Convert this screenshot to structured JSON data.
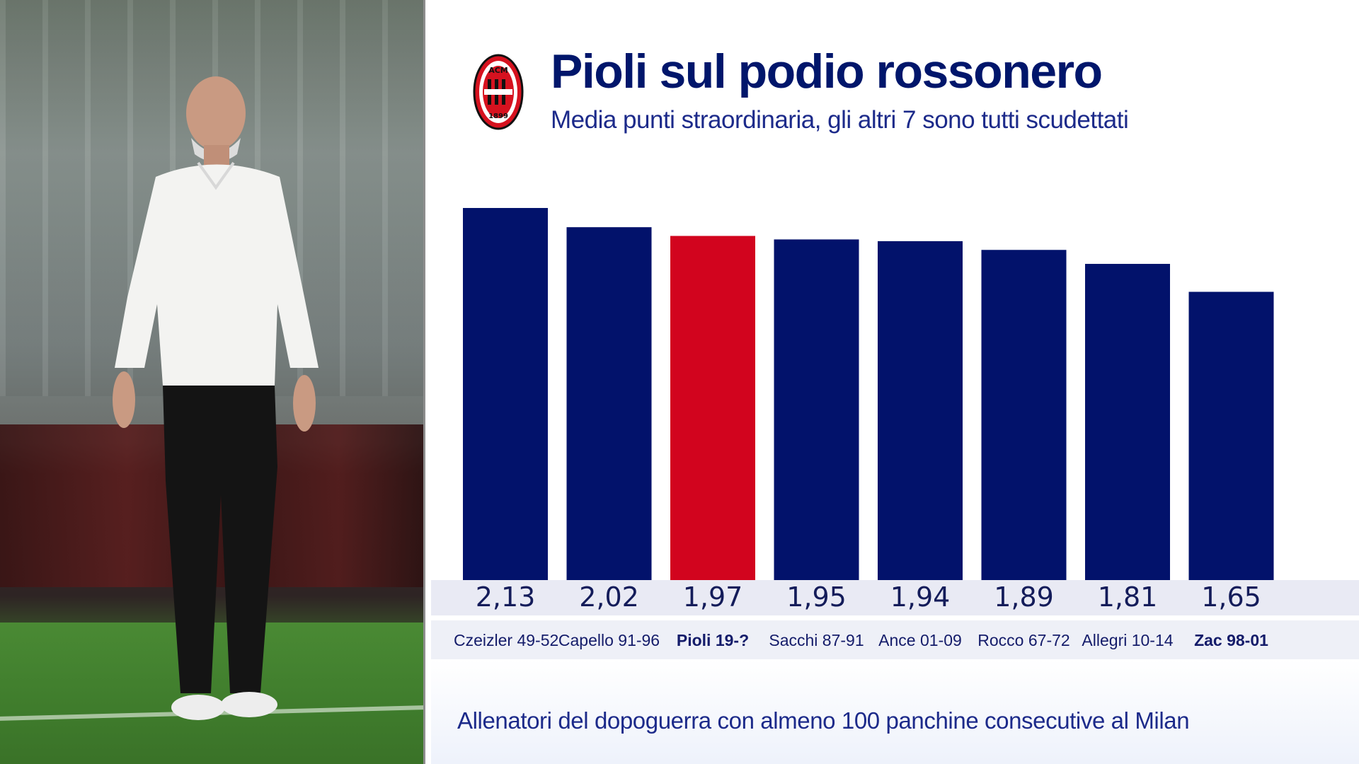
{
  "header": {
    "title": "Pioli sul podio rossonero",
    "subtitle": "Media punti straordinaria, gli altri 7 sono tutti scudettati"
  },
  "logo": {
    "icon": "ac-milan-crest-icon",
    "text_top": "ACM",
    "text_bottom": "1899"
  },
  "photo": {
    "subject": "coach-photo"
  },
  "chart_data": {
    "type": "bar",
    "title": "Pioli sul podio rossonero",
    "subtitle": "Media punti straordinaria, gli altri 7 sono tutti scudettati",
    "categories": [
      "Czeizler 49-52",
      "Capello 91-96",
      "Pioli 19-?",
      "Sacchi 87-91",
      "Ance 01-09",
      "Rocco 67-72",
      "Allegri 10-14",
      "Zac 98-01"
    ],
    "values": [
      2.13,
      2.02,
      1.97,
      1.95,
      1.94,
      1.89,
      1.81,
      1.65
    ],
    "value_labels": [
      "2,13",
      "2,02",
      "1,97",
      "1,95",
      "1,94",
      "1,89",
      "1,81",
      "1,65"
    ],
    "highlight_index": 2,
    "bold_label_indices": [
      2,
      7
    ],
    "xlabel": "",
    "ylabel": "",
    "ylim": [
      0,
      2.13
    ],
    "grid": false,
    "legend": "none",
    "colors": {
      "bar": "#02126b",
      "highlight": "#d2041e"
    }
  },
  "footer": {
    "note": "Allenatori del dopoguerra con almeno 100 panchine consecutive al Milan"
  }
}
